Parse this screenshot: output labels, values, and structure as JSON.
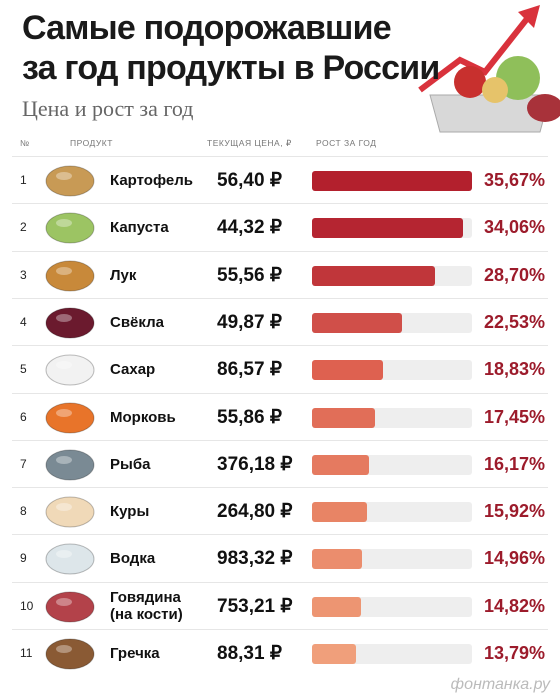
{
  "chart_data": {
    "type": "bar",
    "title": "Самые подорожавшие\nза год продукты в России",
    "subtitle": "Цена и рост за год",
    "columns": [
      "№",
      "ПРОДУКТ",
      "ТЕКУЩАЯ ЦЕНА, ₽",
      "РОСТ ЗА ГОД"
    ],
    "ranks": [
      1,
      2,
      3,
      4,
      5,
      6,
      7,
      8,
      9,
      10,
      11
    ],
    "categories": [
      "Картофель",
      "Капуста",
      "Лук",
      "Свёкла",
      "Сахар",
      "Морковь",
      "Рыба",
      "Куры",
      "Водка",
      "Говядина\n(на кости)",
      "Гречка"
    ],
    "prices": [
      "56,40 ₽",
      "44,32 ₽",
      "55,56 ₽",
      "49,87 ₽",
      "86,57 ₽",
      "55,86 ₽",
      "376,18 ₽",
      "264,80 ₽",
      "983,32 ₽",
      "753,21 ₽",
      "88,31 ₽"
    ],
    "values": [
      35.67,
      34.06,
      28.7,
      22.53,
      18.83,
      17.45,
      16.17,
      15.92,
      14.96,
      14.82,
      13.79
    ],
    "value_labels": [
      "35,67%",
      "34,06%",
      "28,70%",
      "22,53%",
      "18,83%",
      "17,45%",
      "16,17%",
      "15,92%",
      "14,96%",
      "14,82%",
      "13,79%"
    ],
    "colors": [
      "#b3202d",
      "#b52531",
      "#c0363a",
      "#d04f49",
      "#de6150",
      "#e16e58",
      "#e57a60",
      "#e88465",
      "#eb8d6d",
      "#ed9572",
      "#f09f7b"
    ],
    "xlim": [
      5.5,
      35.67
    ],
    "watermark": "фонтанка.ру"
  }
}
